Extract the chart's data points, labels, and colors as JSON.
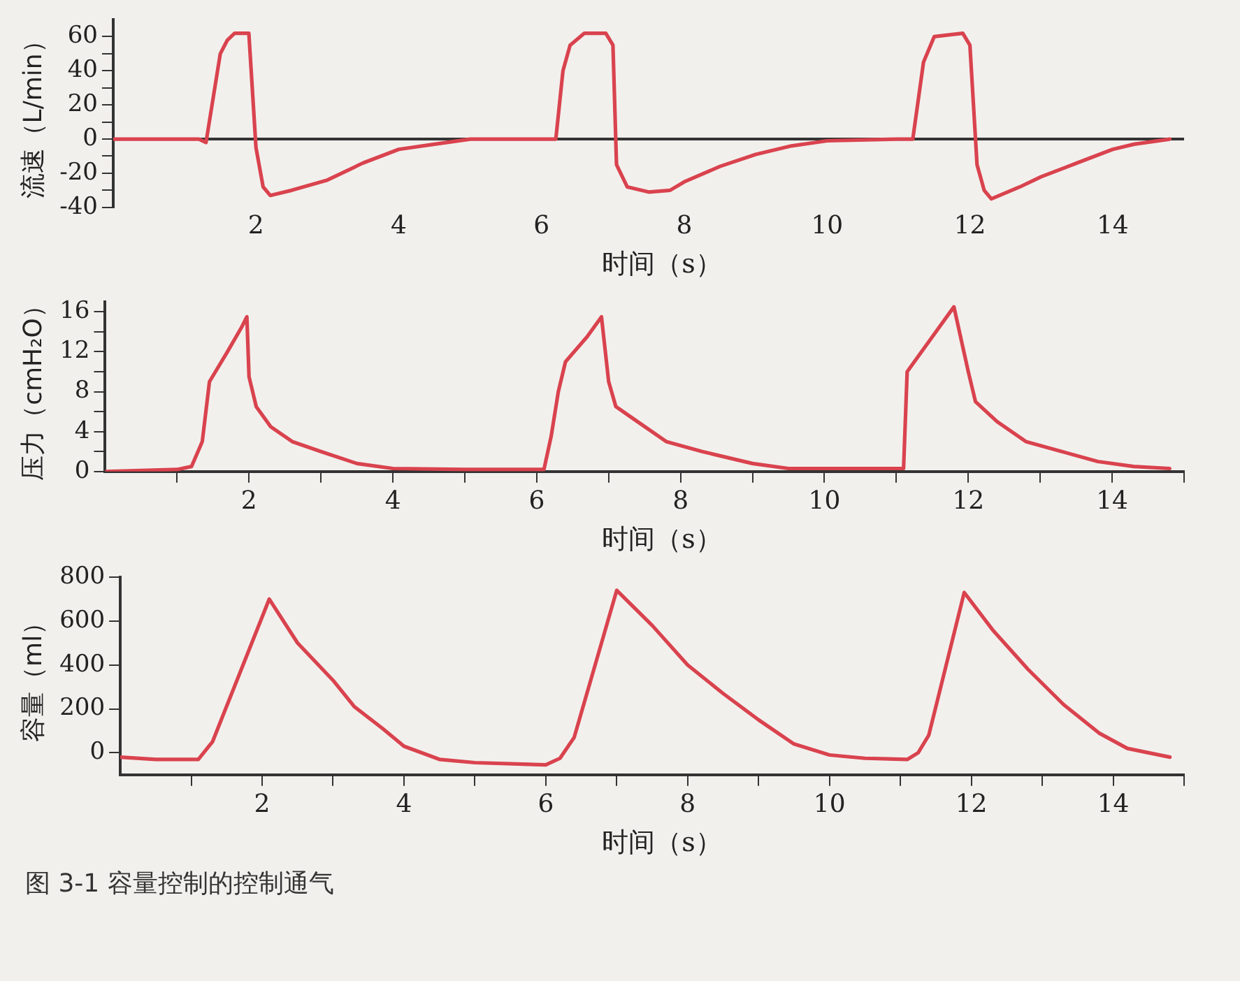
{
  "chart_data": [
    {
      "type": "line",
      "ylabel": "流速（L/min）",
      "xlabel": "时间（s）",
      "legend": false,
      "grid": false,
      "marker": "none",
      "line_style": "solid",
      "xlim": [
        0,
        15
      ],
      "ref_lines": [
        {
          "axis": "y",
          "value": 0,
          "color": "#333333"
        }
      ],
      "xticks": [
        2,
        4,
        6,
        8,
        10,
        12,
        14
      ],
      "ylim": [
        -40,
        70
      ],
      "yticks": [
        -40,
        {
          "value": -30,
          "label": null
        },
        -20,
        {
          "value": -10,
          "label": null
        },
        0,
        {
          "value": 10,
          "label": null
        },
        20,
        {
          "value": 30,
          "label": null
        },
        40,
        {
          "value": 50,
          "label": null
        },
        60
      ],
      "series": [
        {
          "color": "#d9434e",
          "x": [
            0,
            1.2,
            1.3,
            1.5,
            1.6,
            1.7,
            1.9,
            2.0,
            2.1,
            2.2,
            2.5,
            3,
            3.5,
            4,
            4.5,
            5,
            6,
            6.2,
            6.3,
            6.4,
            6.6,
            6.9,
            7.0,
            7.05,
            7.2,
            7.5,
            7.8,
            8,
            8.5,
            9,
            9.5,
            10,
            11,
            11.2,
            11.35,
            11.5,
            11.9,
            12.0,
            12.1,
            12.2,
            12.3,
            12.7,
            13,
            13.5,
            14,
            14.3,
            14.8
          ],
          "values": [
            0,
            0,
            -2,
            50,
            58,
            62,
            62,
            -5,
            -28,
            -33,
            -30,
            -24,
            -14,
            -6,
            -3,
            0,
            0,
            0,
            40,
            55,
            62,
            62,
            55,
            -15,
            -28,
            -31,
            -30,
            -25,
            -16,
            -9,
            -4,
            -1,
            0,
            0,
            45,
            60,
            62,
            55,
            -15,
            -30,
            -35,
            -28,
            -22,
            -14,
            -6,
            -3,
            0
          ]
        }
      ]
    },
    {
      "type": "line",
      "ylabel": "压力（cmH₂O）",
      "xlabel": "时间（s）",
      "legend": false,
      "grid": false,
      "marker": "none",
      "line_style": "solid",
      "xlim": [
        0,
        15
      ],
      "xticks": [
        {
          "value": 1,
          "label": null
        },
        2,
        {
          "value": 3,
          "label": null
        },
        4,
        {
          "value": 5,
          "label": null
        },
        6,
        {
          "value": 7,
          "label": null
        },
        8,
        {
          "value": 9,
          "label": null
        },
        10,
        {
          "value": 11,
          "label": null
        },
        12,
        {
          "value": 13,
          "label": null
        },
        14,
        {
          "value": 15,
          "label": null
        }
      ],
      "ylim": [
        0,
        17
      ],
      "yticks": [
        0,
        {
          "value": 2,
          "label": null
        },
        4,
        {
          "value": 6,
          "label": null
        },
        8,
        {
          "value": 10,
          "label": null
        },
        12,
        {
          "value": 14,
          "label": null
        },
        16
      ],
      "series": [
        {
          "color": "#d9434e",
          "x": [
            0,
            1.0,
            1.2,
            1.35,
            1.45,
            1.7,
            1.9,
            1.97,
            2.0,
            2.1,
            2.3,
            2.6,
            3,
            3.5,
            4,
            5,
            6.1,
            6.2,
            6.3,
            6.4,
            6.7,
            6.9,
            7.0,
            7.1,
            7.3,
            7.8,
            8.3,
            9,
            9.5,
            11.1,
            11.15,
            11.5,
            11.8,
            12.0,
            12.1,
            12.4,
            12.8,
            13.3,
            13.8,
            14.3,
            14.8
          ],
          "values": [
            0,
            0.2,
            0.5,
            3,
            9,
            12,
            14.5,
            15.5,
            9.5,
            6.5,
            4.5,
            3,
            2,
            0.8,
            0.3,
            0.2,
            0.2,
            3.5,
            8,
            11,
            13.5,
            15.5,
            9,
            6.5,
            5.5,
            3,
            2,
            0.8,
            0.3,
            0.3,
            10,
            13.5,
            16.5,
            10,
            7,
            5,
            3,
            2,
            1,
            0.5,
            0.3
          ]
        }
      ]
    },
    {
      "type": "line",
      "ylabel": "容量（ml）",
      "xlabel": "时间（s）",
      "legend": false,
      "grid": false,
      "marker": "none",
      "line_style": "solid",
      "xlim": [
        0,
        15
      ],
      "xticks": [
        {
          "value": 1,
          "label": null
        },
        2,
        {
          "value": 3,
          "label": null
        },
        4,
        {
          "value": 5,
          "label": null
        },
        6,
        {
          "value": 7,
          "label": null
        },
        8,
        {
          "value": 9,
          "label": null
        },
        10,
        {
          "value": 11,
          "label": null
        },
        12,
        {
          "value": 13,
          "label": null
        },
        14,
        {
          "value": 15,
          "label": null
        }
      ],
      "ylim": [
        -100,
        800
      ],
      "yticks": [
        0,
        200,
        400,
        600,
        800
      ],
      "annotations": [
        "图 3-1   容量控制的控制通气"
      ],
      "series": [
        {
          "color": "#d9434e",
          "x": [
            0,
            0.5,
            1.1,
            1.3,
            2.1,
            2.5,
            3,
            3.3,
            3.7,
            4,
            4.5,
            5,
            6,
            6.2,
            6.4,
            7.0,
            7.5,
            8,
            8.5,
            9,
            9.5,
            10,
            10.5,
            11.1,
            11.25,
            11.4,
            11.9,
            12.3,
            12.8,
            13.3,
            13.8,
            14.2,
            14.8
          ],
          "values": [
            -20,
            -30,
            -30,
            50,
            700,
            500,
            330,
            210,
            110,
            30,
            -30,
            -45,
            -55,
            -25,
            70,
            740,
            580,
            400,
            270,
            150,
            40,
            -10,
            -25,
            -30,
            0,
            80,
            730,
            560,
            380,
            220,
            90,
            20,
            -20
          ]
        }
      ]
    }
  ]
}
